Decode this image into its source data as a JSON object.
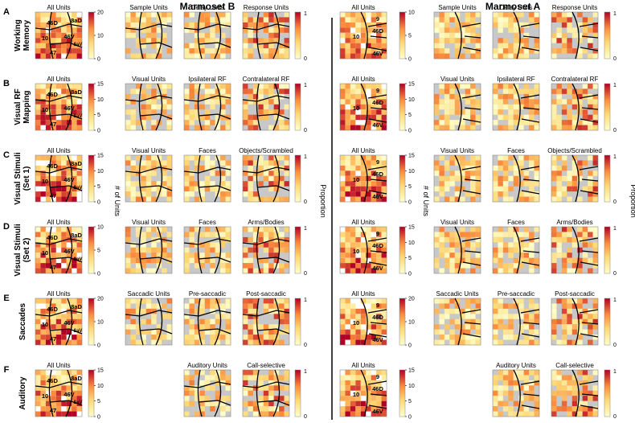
{
  "monkeys": [
    "Marmoset B",
    "Marmoset A"
  ],
  "rows": [
    {
      "letter": "A",
      "label": [
        "Working",
        "Memory"
      ],
      "subs": [
        "Sample Units",
        "Delay Units",
        "Response Units"
      ],
      "countMax": 20,
      "countTicks": [
        0,
        10,
        20
      ],
      "countMaxA": 10,
      "countTicksA": [
        0,
        5,
        10
      ]
    },
    {
      "letter": "B",
      "label": [
        "Visual RF",
        "Mapping"
      ],
      "subs": [
        "Visual Units",
        "Ipsilateral RF",
        "Contralateral RF"
      ],
      "countMax": 15,
      "countTicks": [
        0,
        5,
        10,
        15
      ],
      "countMaxA": 15,
      "countTicksA": [
        0,
        5,
        10,
        15
      ]
    },
    {
      "letter": "C",
      "label": [
        "Visual Stimuli",
        "(Set 1)"
      ],
      "subs": [
        "Visual Units",
        "Faces",
        "Objects/Scrambled"
      ],
      "countMax": 15,
      "countTicks": [
        0,
        5,
        10,
        15
      ],
      "countMaxA": 15,
      "countTicksA": [
        0,
        5,
        10,
        15
      ]
    },
    {
      "letter": "D",
      "label": [
        "Visual Stimuli",
        "(Set 2)"
      ],
      "subs": [
        "Visual Units",
        "Faces",
        "Arms/Bodies"
      ],
      "countMax": 10,
      "countTicks": [
        0,
        5,
        10
      ],
      "countMaxA": 15,
      "countTicksA": [
        0,
        5,
        10,
        15
      ]
    },
    {
      "letter": "E",
      "label": [
        "Saccades"
      ],
      "subs": [
        "Saccadic Units",
        "Pre-saccadic",
        "Post-saccadic"
      ],
      "countMax": 20,
      "countTicks": [
        0,
        10,
        20
      ],
      "countMaxA": 20,
      "countTicksA": [
        0,
        10,
        20
      ]
    },
    {
      "letter": "F",
      "label": [
        "Auditory"
      ],
      "subs": [
        "",
        "Auditory Units",
        "Call-selective"
      ],
      "countMax": 15,
      "countTicks": [
        0,
        5,
        10,
        15
      ],
      "countMaxA": 15,
      "countTicksA": [
        0,
        5,
        10,
        15
      ]
    }
  ],
  "allUnitsTitle": "All Units",
  "regionsB": [
    "46D",
    "8aD",
    "10",
    "46V",
    "47",
    "8aV"
  ],
  "regionsA": [
    "9",
    "46D",
    "10",
    "46V"
  ],
  "countLabel": "# of Units",
  "propLabel": "Proportion",
  "propTicks": [
    0,
    1
  ],
  "colors": {
    "low": "#ffffcc",
    "mid": "#fd8d3c",
    "high": "#b10026",
    "empty": "#c8c8c8",
    "line": "#000000"
  }
}
